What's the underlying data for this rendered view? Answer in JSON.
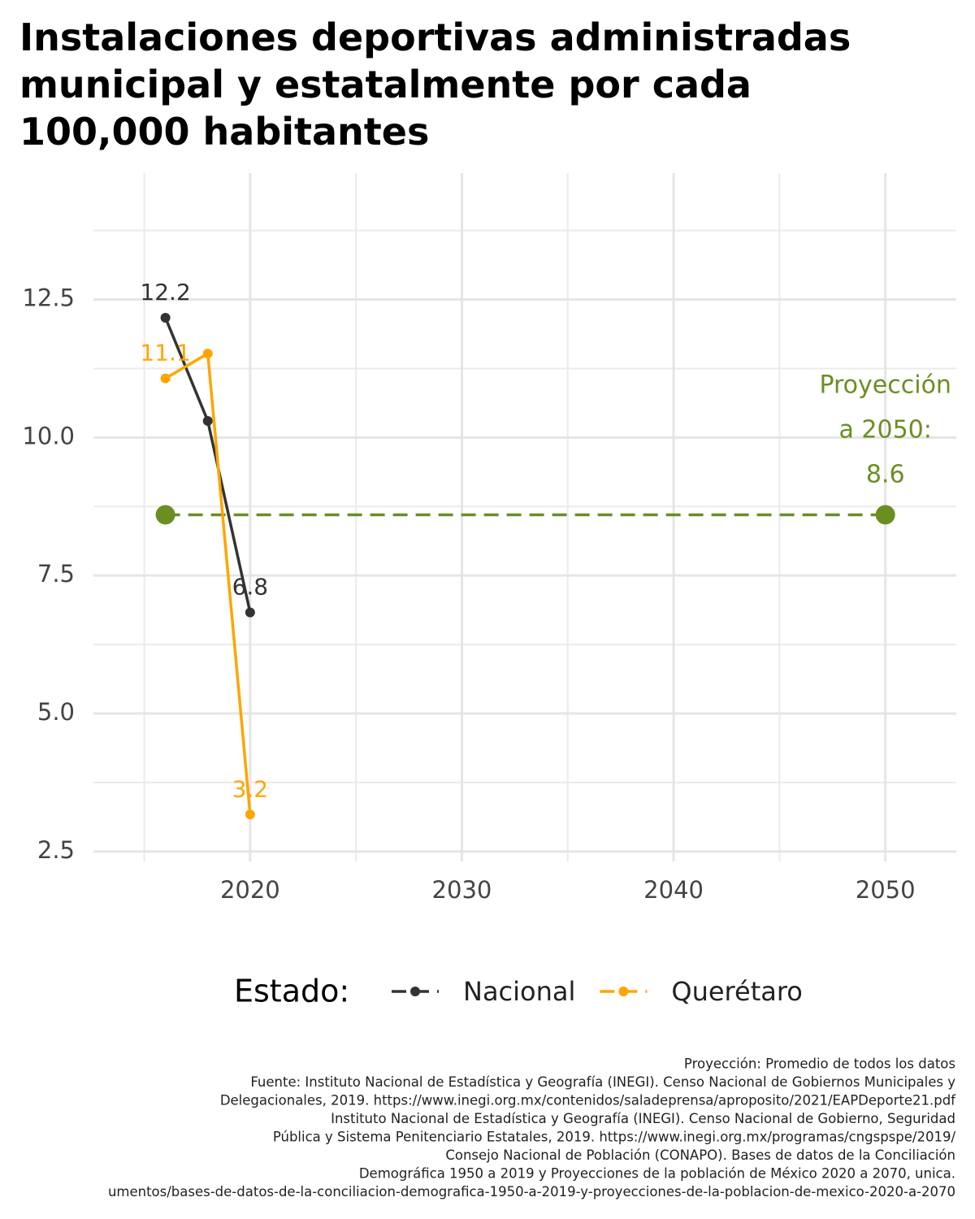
{
  "chart_data": {
    "type": "line",
    "title_lines": [
      "Instalaciones deportivas administradas",
      "municipal y estatalmente por cada",
      "100,000 habitantes"
    ],
    "x": [
      2016,
      2018,
      2020
    ],
    "series": [
      {
        "name": "Nacional",
        "color": "#333333",
        "values": [
          12.17,
          10.3,
          6.83
        ],
        "value_labels": [
          "12.2",
          null,
          "6.8"
        ]
      },
      {
        "name": "Querétaro",
        "color": "#ffa500",
        "values": [
          11.07,
          11.52,
          3.17
        ],
        "value_labels": [
          "11.1",
          null,
          "3.2"
        ]
      }
    ],
    "projection": {
      "x": [
        2016,
        2050
      ],
      "values": [
        8.6,
        8.6
      ],
      "color": "#6b8e23",
      "label_lines": [
        "Proyección",
        "a 2050:"
      ]
    },
    "xlim": [
      2012.6,
      2053.35
    ],
    "xticks": [
      2020,
      2030,
      2040,
      2050
    ],
    "minor_xticks": [
      2015,
      2025,
      2035,
      2045
    ],
    "ylim": [
      2.32,
      14.79
    ],
    "yticks": [
      {
        "value": 2.5,
        "label": "2.5"
      },
      {
        "value": 5,
        "label": "5.0"
      },
      {
        "value": 7.5,
        "label": "7.5"
      },
      {
        "value": 10,
        "label": "10.0"
      },
      {
        "value": 12.5,
        "label": "12.5"
      }
    ],
    "minor_yticks": [
      3.75,
      6.25,
      8.75,
      11.25,
      13.75
    ],
    "grid": true,
    "legend_title": "Estado:",
    "legend_position": "bottom",
    "caption_lines": [
      "Proyección: Promedio de todos los datos",
      "Fuente: Instituto Nacional de Estadística y Geografía (INEGI). Censo Nacional de Gobiernos Municipales y",
      "Delegacionales, 2019. https://www.inegi.org.mx/contenidos/saladeprensa/aproposito/2021/EAPDeporte21.pdf",
      "Instituto Nacional de Estadística y Geografía (INEGI). Censo Nacional de Gobierno, Seguridad",
      "Pública y Sistema Penitenciario Estatales, 2019. https://www.inegi.org.mx/programas/cngspspe/2019/",
      "Consejo Nacional de Población (CONAPO). Bases de datos de la Conciliación",
      "Demográfica 1950 a 2019 y Proyecciones de la población de México 2020 a 2070, unica.",
      "umentos/bases-de-datos-de-la-conciliacion-demografica-1950-a-2019-y-proyecciones-de-la-poblacion-de-mexico-2020-a-2070"
    ]
  }
}
